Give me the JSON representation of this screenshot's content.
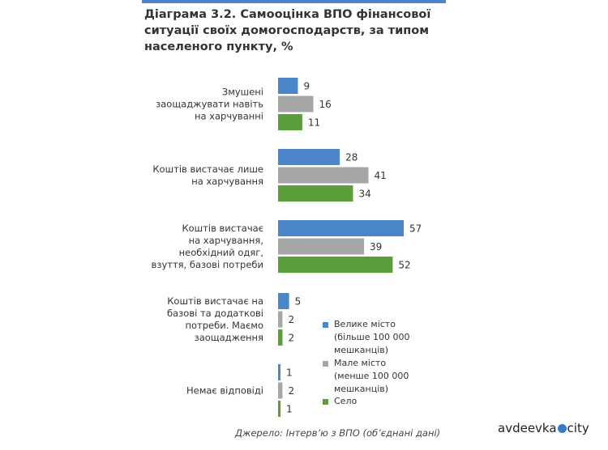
{
  "chart_data": {
    "type": "bar",
    "orientation": "horizontal",
    "title_lines": [
      "Діаграма 3.2. Самооцінка ВПО фінансової",
      "ситуації своїх домогосподарств, за типом",
      "населеного пункту, %"
    ],
    "categories": [
      [
        "Змушені",
        "заощаджувати навіть",
        "на харчуванні"
      ],
      [
        "Коштів вистачає лише",
        "на харчування"
      ],
      [
        "Коштів вистачає",
        "на харчування,",
        "необхідний одяг,",
        "взуття, базові потреби"
      ],
      [
        "Коштів вистачає на",
        "базові та додаткові",
        "потреби. Маємо",
        "заощадження"
      ],
      [
        "Немає відповіді"
      ]
    ],
    "series": [
      {
        "legend_lines": [
          "Велике місто",
          "(більше 100 000",
          "мешканців)"
        ],
        "color": "#4a86c8",
        "values": [
          9,
          28,
          57,
          5,
          1
        ]
      },
      {
        "legend_lines": [
          "Мале місто",
          "(менше 100 000",
          "мешканців)"
        ],
        "color": "#a6a6a6",
        "values": [
          16,
          41,
          39,
          2,
          2
        ]
      },
      {
        "legend_lines": [
          "Село"
        ],
        "color": "#5a9e3a",
        "values": [
          11,
          34,
          52,
          2,
          1
        ]
      }
    ],
    "legend_position": "bottom-right",
    "grid": false
  },
  "source_note": "Джерело: Інтерв’ю з ВПО (об’єднані дані)",
  "watermark": {
    "left": "avdeevka",
    "right": "city"
  }
}
